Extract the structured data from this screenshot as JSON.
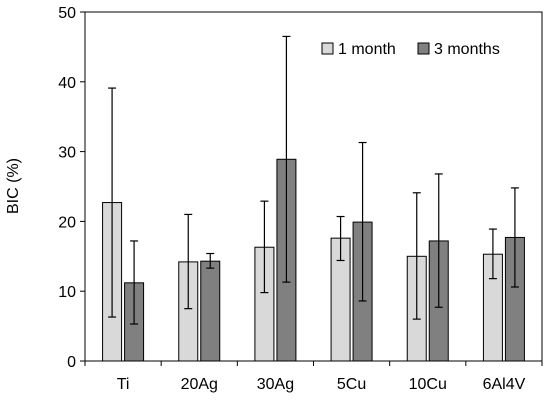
{
  "chart_data": {
    "type": "bar",
    "title": "",
    "xlabel": "",
    "ylabel": "BIC (%)",
    "ylim": [
      0,
      50
    ],
    "yticks": [
      0,
      10,
      20,
      30,
      40,
      50
    ],
    "grid": false,
    "legend_position": "top-right",
    "categories": [
      "Ti",
      "20Ag",
      "30Ag",
      "5Cu",
      "10Cu",
      "6Al4V"
    ],
    "series": [
      {
        "name": "1 month",
        "color": "#d9d9d9",
        "values": [
          22.7,
          14.2,
          16.3,
          17.6,
          15.0,
          15.3
        ],
        "err_upper": [
          39.1,
          21.0,
          22.9,
          20.7,
          24.1,
          18.9
        ],
        "err_lower": [
          6.3,
          7.5,
          9.8,
          14.4,
          6.0,
          11.8
        ]
      },
      {
        "name": "3 months",
        "color": "#808080",
        "values": [
          11.2,
          14.3,
          28.9,
          19.9,
          17.2,
          17.7
        ],
        "err_upper": [
          17.2,
          15.4,
          46.5,
          31.3,
          26.8,
          24.8
        ],
        "err_lower": [
          5.3,
          13.3,
          11.3,
          8.6,
          7.7,
          10.6
        ]
      }
    ]
  }
}
